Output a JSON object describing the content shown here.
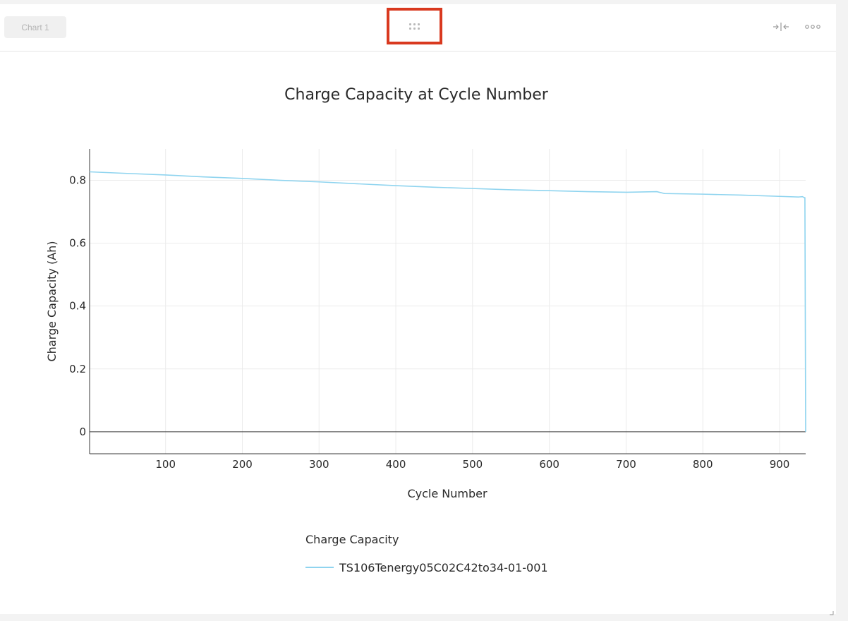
{
  "header": {
    "tab_label": "Chart 1"
  },
  "icons": {
    "drag": "drag-handle-icon",
    "collapse": "collapse-arrows-icon",
    "more": "more-horizontal-icon"
  },
  "colors": {
    "series_line": "#8fd4ef",
    "highlight_border": "#d9391f"
  },
  "chart_data": {
    "type": "line",
    "title": "Charge Capacity at Cycle Number",
    "xlabel": "Cycle Number",
    "ylabel": "Charge Capacity (Ah)",
    "xlim": [
      1,
      934
    ],
    "ylim": [
      -0.07,
      0.9
    ],
    "xticks": [
      100,
      200,
      300,
      400,
      500,
      600,
      700,
      800,
      900
    ],
    "yticks": [
      0,
      0.2,
      0.4,
      0.6,
      0.8
    ],
    "ytick_labels": [
      "0",
      "0.2",
      "0.4",
      "0.6",
      "0.8"
    ],
    "grid": true,
    "legend_title": "Charge Capacity",
    "legend_position": "bottom-center",
    "series": [
      {
        "name": "TS106Tenergy05C02C42to34-01-001",
        "color": "#8fd4ef",
        "x": [
          1,
          50,
          100,
          150,
          200,
          250,
          300,
          350,
          400,
          450,
          500,
          550,
          600,
          650,
          700,
          740,
          750,
          800,
          850,
          900,
          925,
          930,
          932,
          933,
          934
        ],
        "y": [
          0.827,
          0.822,
          0.817,
          0.811,
          0.806,
          0.8,
          0.795,
          0.789,
          0.783,
          0.778,
          0.774,
          0.77,
          0.767,
          0.764,
          0.762,
          0.764,
          0.758,
          0.756,
          0.753,
          0.749,
          0.747,
          0.748,
          0.745,
          0.745,
          0.0
        ]
      }
    ]
  }
}
